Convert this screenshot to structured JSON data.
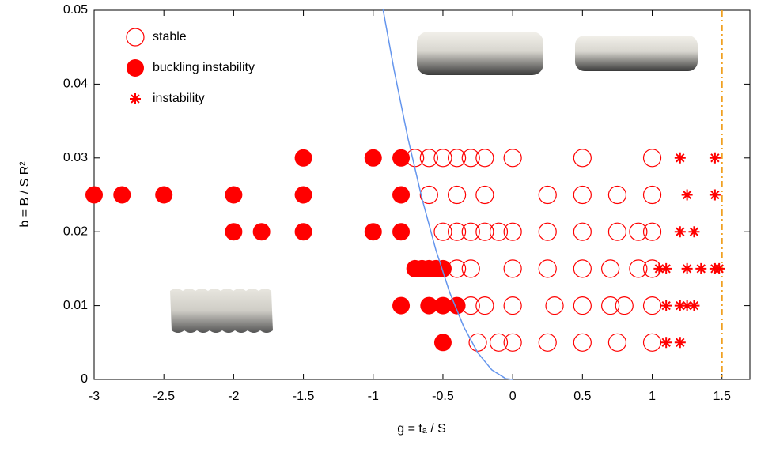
{
  "chart_data": {
    "type": "scatter",
    "xlabel": "g = tₐ / S",
    "ylabel": "b = B / S R²",
    "xlim": [
      -3,
      1.7
    ],
    "ylim": [
      0,
      0.05
    ],
    "xticks": [
      -3,
      -2.5,
      -2,
      -1.5,
      -1,
      -0.5,
      0,
      0.5,
      1,
      1.5
    ],
    "yticks": [
      0,
      0.01,
      0.02,
      0.03,
      0.04,
      0.05
    ],
    "legend": "upper left",
    "series": [
      {
        "name": "stable",
        "marker": "open-circle",
        "color": "#ff0000",
        "x": [
          -0.7,
          -0.6,
          -0.5,
          -0.4,
          -0.3,
          -0.2,
          0,
          0.5,
          1.0,
          -0.6,
          -0.4,
          -0.2,
          0.25,
          0.5,
          0.75,
          1.0,
          -0.5,
          -0.4,
          -0.3,
          -0.2,
          -0.1,
          0,
          0.25,
          0.5,
          0.75,
          0.9,
          1.0,
          -0.4,
          -0.3,
          0,
          0.25,
          0.5,
          0.7,
          0.9,
          1.0,
          -0.3,
          -0.2,
          0,
          0.3,
          0.5,
          0.7,
          0.8,
          1.0,
          -0.25,
          -0.1,
          0,
          0.25,
          0.5,
          0.75,
          1.0
        ],
        "y": [
          0.03,
          0.03,
          0.03,
          0.03,
          0.03,
          0.03,
          0.03,
          0.03,
          0.03,
          0.025,
          0.025,
          0.025,
          0.025,
          0.025,
          0.025,
          0.025,
          0.02,
          0.02,
          0.02,
          0.02,
          0.02,
          0.02,
          0.02,
          0.02,
          0.02,
          0.02,
          0.02,
          0.015,
          0.015,
          0.015,
          0.015,
          0.015,
          0.015,
          0.015,
          0.015,
          0.01,
          0.01,
          0.01,
          0.01,
          0.01,
          0.01,
          0.01,
          0.01,
          0.005,
          0.005,
          0.005,
          0.005,
          0.005,
          0.005,
          0.005
        ]
      },
      {
        "name": "buckling instability",
        "marker": "filled-circle",
        "color": "#ff0000",
        "x": [
          -1.5,
          -1,
          -0.8,
          -3,
          -2.8,
          -2.5,
          -2,
          -1.5,
          -0.8,
          -2,
          -1.8,
          -1.5,
          -1,
          -0.8,
          -0.7,
          -0.65,
          -0.6,
          -0.55,
          -0.5,
          -0.8,
          -0.6,
          -0.5,
          -0.4,
          -0.5
        ],
        "y": [
          0.03,
          0.03,
          0.03,
          0.025,
          0.025,
          0.025,
          0.025,
          0.025,
          0.025,
          0.02,
          0.02,
          0.02,
          0.02,
          0.02,
          0.015,
          0.015,
          0.015,
          0.015,
          0.015,
          0.01,
          0.01,
          0.01,
          0.01,
          0.005
        ]
      },
      {
        "name": "instability",
        "marker": "star",
        "color": "#ff0000",
        "x": [
          1.2,
          1.45,
          1.25,
          1.45,
          1.2,
          1.3,
          1.05,
          1.1,
          1.25,
          1.35,
          1.45,
          1.48,
          1.1,
          1.2,
          1.25,
          1.3,
          1.1,
          1.2
        ],
        "y": [
          0.03,
          0.03,
          0.025,
          0.025,
          0.02,
          0.02,
          0.015,
          0.015,
          0.015,
          0.015,
          0.015,
          0.015,
          0.01,
          0.01,
          0.01,
          0.01,
          0.005,
          0.005
        ]
      },
      {
        "type": "line",
        "color": "#6495ed",
        "x": [
          -0.93,
          -0.85,
          -0.75,
          -0.65,
          -0.55,
          -0.45,
          -0.35,
          -0.25,
          -0.15,
          -0.05,
          0
        ],
        "y": [
          0.0502,
          0.0419,
          0.0326,
          0.0245,
          0.0175,
          0.0117,
          0.0071,
          0.0036,
          0.0013,
          0.0001,
          0
        ]
      }
    ],
    "vline": {
      "x": 1.5,
      "color": "#f0a020"
    }
  }
}
